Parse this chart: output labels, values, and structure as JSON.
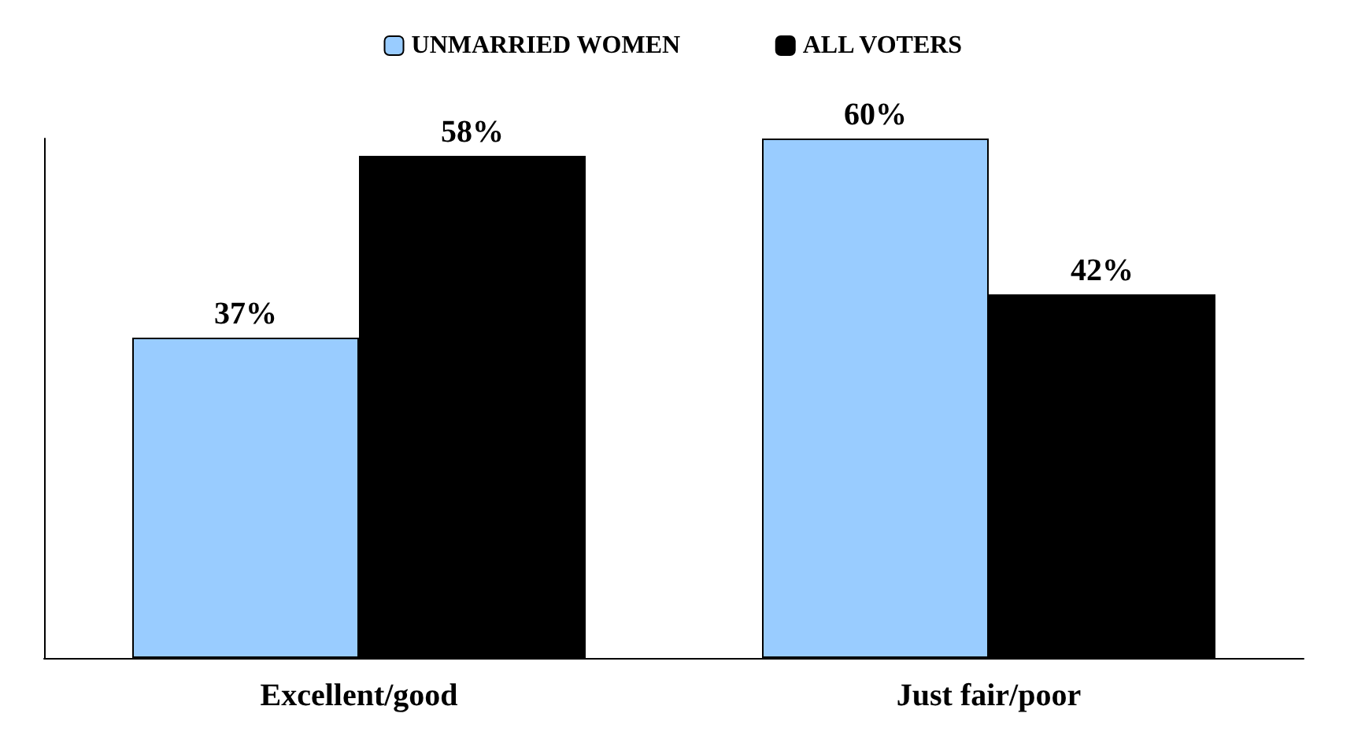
{
  "chart_data": {
    "type": "bar",
    "categories": [
      "Excellent/good",
      "Just fair/poor"
    ],
    "series": [
      {
        "name": "UNMARRIED WOMEN",
        "color": "#99ccff",
        "values": [
          37,
          60
        ],
        "value_labels": [
          "37%",
          "60%"
        ]
      },
      {
        "name": "ALL VOTERS",
        "color": "#000000",
        "values": [
          58,
          42
        ],
        "value_labels": [
          "58%",
          "42%"
        ]
      }
    ],
    "legend": "top",
    "grid": false
  }
}
